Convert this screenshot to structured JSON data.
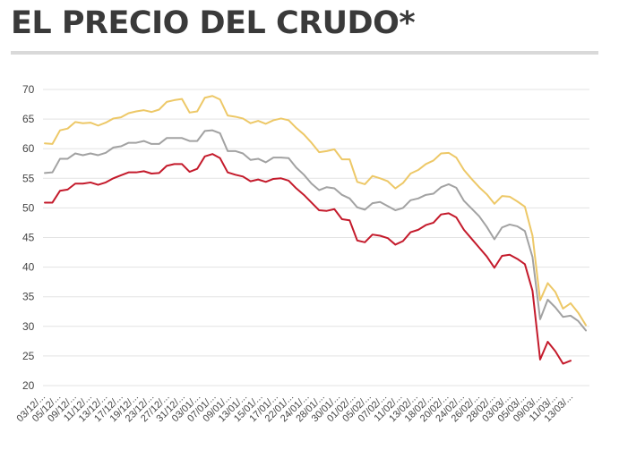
{
  "chart_data": {
    "type": "line",
    "title": "EL PRECIO DEL CRUDO*",
    "xlabel": "",
    "ylabel": "",
    "ylim": [
      20,
      70
    ],
    "yticks": [
      20,
      25,
      30,
      35,
      40,
      45,
      50,
      55,
      60,
      65,
      70
    ],
    "grid": true,
    "legend": "none",
    "x_tick_labels": [
      "03/12/...",
      "05/12/...",
      "09/12/...",
      "11/12/...",
      "13/12/...",
      "17/12/...",
      "19/12/...",
      "23/12/...",
      "27/12/...",
      "31/12/...",
      "03/01/...",
      "07/01/...",
      "09/01/...",
      "13/01/...",
      "15/01/...",
      "17/01/...",
      "22/01/...",
      "24/01/...",
      "28/01/...",
      "30/01/...",
      "01/02/...",
      "05/02/...",
      "07/02/...",
      "11/02/...",
      "13/02/...",
      "18/02/...",
      "20/02/...",
      "24/02/...",
      "26/02/...",
      "28/02/...",
      "03/03/...",
      "05/03/...",
      "09/03/...",
      "11/03/...",
      "13/03/..."
    ],
    "series": [
      {
        "color": "#edc867",
        "values": [
          60.9,
          60.8,
          63.1,
          63.4,
          64.5,
          64.3,
          64.4,
          63.9,
          64.4,
          65.1,
          65.3,
          66.0,
          66.3,
          66.5,
          66.2,
          66.6,
          67.9,
          68.2,
          68.4,
          66.1,
          66.3,
          68.6,
          68.9,
          68.3,
          65.6,
          65.4,
          65.1,
          64.3,
          64.7,
          64.2,
          64.8,
          65.1,
          64.8,
          63.5,
          62.4,
          61.0,
          59.4,
          59.6,
          59.9,
          58.2,
          58.2,
          54.4,
          54.0,
          55.4,
          55.0,
          54.5,
          53.3,
          54.2,
          55.8,
          56.4,
          57.4,
          58.0,
          59.2,
          59.3,
          58.5,
          56.4,
          54.9,
          53.5,
          52.3,
          50.7,
          52.0,
          51.9,
          51.1,
          50.2,
          45.3,
          34.4,
          37.3,
          35.8,
          33.0,
          33.9,
          32.3,
          30.2
        ]
      },
      {
        "color": "#a2a2a2",
        "values": [
          55.9,
          56.0,
          58.3,
          58.3,
          59.2,
          58.9,
          59.2,
          58.9,
          59.3,
          60.2,
          60.4,
          61.0,
          61.0,
          61.3,
          60.8,
          60.8,
          61.8,
          61.8,
          61.8,
          61.3,
          61.3,
          63.0,
          63.1,
          62.6,
          59.6,
          59.6,
          59.2,
          58.1,
          58.3,
          57.7,
          58.5,
          58.5,
          58.4,
          56.8,
          55.6,
          54.1,
          53.0,
          53.5,
          53.3,
          52.2,
          51.6,
          50.1,
          49.7,
          50.8,
          51.0,
          50.3,
          49.6,
          50.0,
          51.3,
          51.6,
          52.2,
          52.4,
          53.5,
          54.0,
          53.4,
          51.2,
          49.9,
          48.6,
          46.8,
          44.7,
          46.7,
          47.2,
          46.9,
          46.1,
          41.7,
          31.2,
          34.5,
          33.2,
          31.6,
          31.8,
          30.9,
          29.3
        ]
      },
      {
        "color": "#c41a2b",
        "values": [
          50.9,
          50.9,
          52.9,
          53.1,
          54.1,
          54.1,
          54.3,
          53.9,
          54.3,
          55.0,
          55.5,
          56.0,
          56.0,
          56.2,
          55.8,
          55.9,
          57.1,
          57.4,
          57.4,
          56.1,
          56.6,
          58.7,
          59.1,
          58.4,
          56.0,
          55.6,
          55.3,
          54.5,
          54.8,
          54.4,
          54.9,
          55.0,
          54.6,
          53.3,
          52.2,
          50.9,
          49.6,
          49.5,
          49.8,
          48.1,
          47.9,
          44.5,
          44.2,
          45.5,
          45.3,
          44.9,
          43.8,
          44.4,
          45.9,
          46.3,
          47.1,
          47.5,
          48.9,
          49.1,
          48.4,
          46.3,
          44.8,
          43.3,
          41.8,
          39.9,
          41.9,
          42.1,
          41.4,
          40.5,
          36.0,
          24.4,
          27.4,
          25.8,
          23.7,
          24.2,
          null,
          null
        ]
      }
    ]
  }
}
